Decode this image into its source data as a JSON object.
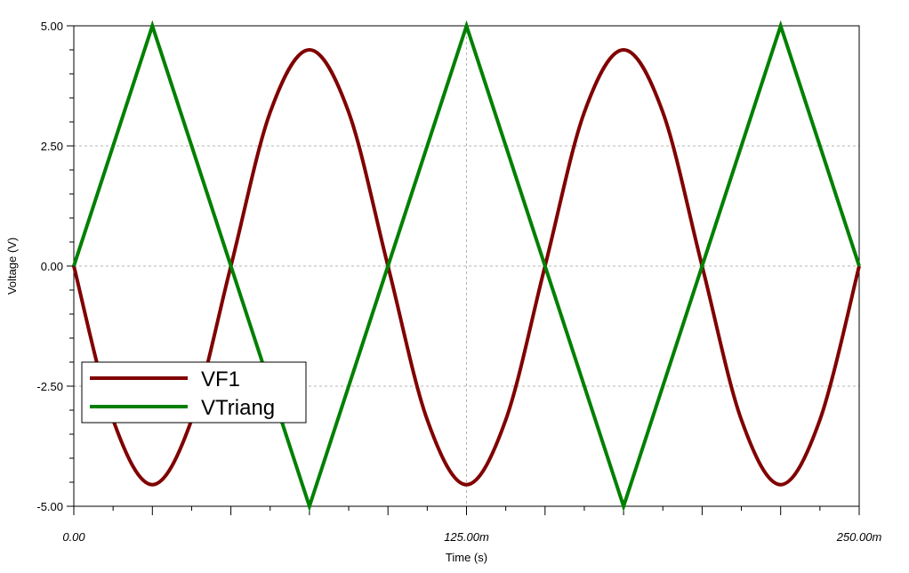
{
  "chart_data": {
    "type": "line",
    "xlabel": "Time (s)",
    "ylabel": "Voltage (V)",
    "xlim": [
      0,
      0.25
    ],
    "ylim": [
      -5,
      5
    ],
    "grid": true,
    "legend_position": "bottom-left",
    "x_tick_labels": [
      "0.00",
      "125.00m",
      "250.00m"
    ],
    "x_tick_values": [
      0,
      0.125,
      0.25
    ],
    "y_tick_labels": [
      "5.00",
      "2.50",
      "0.00",
      "-2.50",
      "-5.00"
    ],
    "y_tick_values": [
      5,
      2.5,
      0,
      -2.5,
      -5
    ],
    "series": [
      {
        "name": "VF1",
        "color": "#800000",
        "x": [
          0,
          0.0125,
          0.025,
          0.0375,
          0.05,
          0.0625,
          0.075,
          0.0875,
          0.1,
          0.1125,
          0.125,
          0.1375,
          0.15,
          0.1625,
          0.175,
          0.1875,
          0.2,
          0.2125,
          0.225,
          0.2375,
          0.25
        ],
        "y": [
          0,
          -3.2,
          -4.55,
          -3.2,
          0,
          3.2,
          4.5,
          3.2,
          0,
          -3.2,
          -4.55,
          -3.2,
          0,
          3.2,
          4.5,
          3.2,
          0,
          -3.2,
          -4.55,
          -3.2,
          0
        ]
      },
      {
        "name": "VTriang",
        "color": "#008000",
        "x": [
          0,
          0.025,
          0.075,
          0.125,
          0.175,
          0.225,
          0.25
        ],
        "y": [
          0,
          5,
          -5,
          5,
          -5,
          5,
          0
        ]
      }
    ]
  }
}
